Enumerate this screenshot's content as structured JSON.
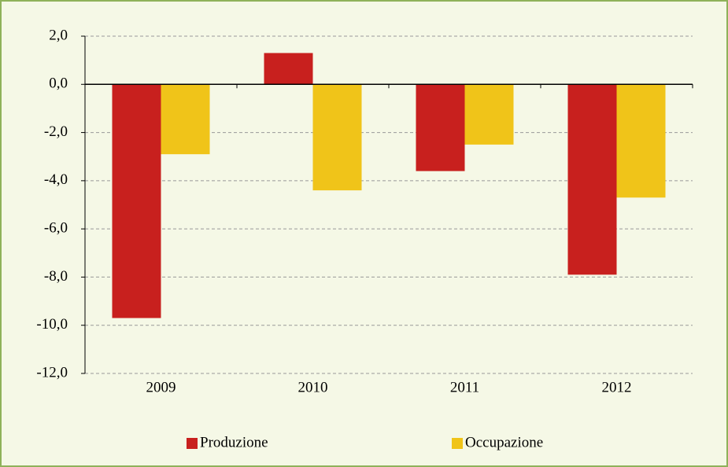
{
  "chart_data": {
    "type": "bar",
    "categories": [
      "2009",
      "2010",
      "2011",
      "2012"
    ],
    "series": [
      {
        "name": "Produzione",
        "color": "#c8201e",
        "values": [
          -9.7,
          1.3,
          -3.6,
          -7.9
        ]
      },
      {
        "name": "Occupazione",
        "color": "#f0c419",
        "values": [
          -2.9,
          -4.4,
          -2.5,
          -4.7
        ]
      }
    ],
    "ylim": [
      -12,
      2
    ],
    "yticks": [
      {
        "value": 2,
        "label": "2,0"
      },
      {
        "value": 0,
        "label": "0,0"
      },
      {
        "value": -2,
        "label": "-2,0"
      },
      {
        "value": -4,
        "label": "-4,0"
      },
      {
        "value": -6,
        "label": "-6,0"
      },
      {
        "value": -8,
        "label": "-8,0"
      },
      {
        "value": -10,
        "label": "-10,0"
      },
      {
        "value": -12,
        "label": "-12,0"
      }
    ],
    "grid": true,
    "legend": "bottom"
  }
}
